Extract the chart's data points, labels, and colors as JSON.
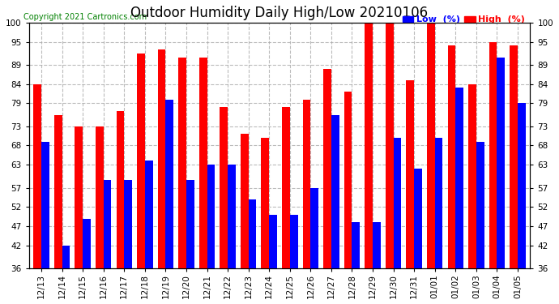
{
  "title": "Outdoor Humidity Daily High/Low 20210106",
  "copyright": "Copyright 2021 Cartronics.com",
  "dates": [
    "12/13",
    "12/14",
    "12/15",
    "12/16",
    "12/17",
    "12/18",
    "12/19",
    "12/20",
    "12/21",
    "12/22",
    "12/23",
    "12/24",
    "12/25",
    "12/26",
    "12/27",
    "12/28",
    "12/29",
    "12/30",
    "12/31",
    "01/01",
    "01/02",
    "01/03",
    "01/04",
    "01/05"
  ],
  "high_values": [
    84,
    76,
    73,
    73,
    77,
    92,
    93,
    91,
    91,
    78,
    71,
    70,
    78,
    80,
    88,
    82,
    100,
    100,
    85,
    100,
    94,
    84,
    95,
    94
  ],
  "low_values": [
    69,
    42,
    49,
    59,
    59,
    64,
    80,
    59,
    63,
    63,
    54,
    50,
    50,
    57,
    76,
    48,
    48,
    70,
    62,
    70,
    83,
    69,
    91,
    79
  ],
  "ylim": [
    36,
    100
  ],
  "yticks": [
    36,
    42,
    47,
    52,
    57,
    63,
    68,
    73,
    79,
    84,
    89,
    95,
    100
  ],
  "bar_width": 0.38,
  "high_color": "#ff0000",
  "low_color": "#0000ff",
  "bg_color": "#ffffff",
  "grid_color": "#aaaaaa",
  "title_fontsize": 12,
  "label_fontsize": 7.5,
  "copyright_fontsize": 7,
  "legend_low_label": "Low  (%)",
  "legend_high_label": "High  (%)"
}
